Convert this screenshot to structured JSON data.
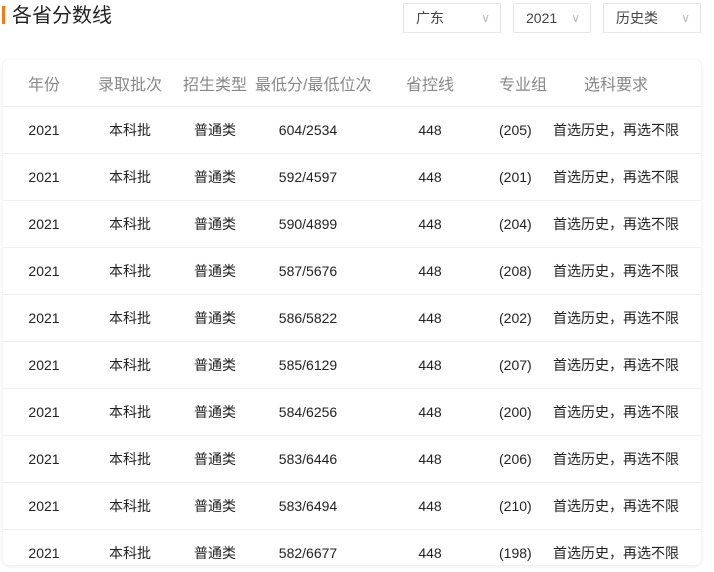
{
  "title": "各省分数线",
  "filters": {
    "province": "广东",
    "year": "2021",
    "category": "历史类"
  },
  "colors": {
    "accent": "#f27a1a"
  },
  "table": {
    "headers": [
      "年份",
      "录取批次",
      "招生类型",
      "最低分/最低位次",
      "省控线",
      "专业组",
      "选科要求"
    ],
    "rows": [
      [
        "2021",
        "本科批",
        "普通类",
        "604/2534",
        "448",
        "(205)",
        "首选历史，再选不限"
      ],
      [
        "2021",
        "本科批",
        "普通类",
        "592/4597",
        "448",
        "(201)",
        "首选历史，再选不限"
      ],
      [
        "2021",
        "本科批",
        "普通类",
        "590/4899",
        "448",
        "(204)",
        "首选历史，再选不限"
      ],
      [
        "2021",
        "本科批",
        "普通类",
        "587/5676",
        "448",
        "(208)",
        "首选历史，再选不限"
      ],
      [
        "2021",
        "本科批",
        "普通类",
        "586/5822",
        "448",
        "(202)",
        "首选历史，再选不限"
      ],
      [
        "2021",
        "本科批",
        "普通类",
        "585/6129",
        "448",
        "(207)",
        "首选历史，再选不限"
      ],
      [
        "2021",
        "本科批",
        "普通类",
        "584/6256",
        "448",
        "(200)",
        "首选历史，再选不限"
      ],
      [
        "2021",
        "本科批",
        "普通类",
        "583/6446",
        "448",
        "(206)",
        "首选历史，再选不限"
      ],
      [
        "2021",
        "本科批",
        "普通类",
        "583/6494",
        "448",
        "(210)",
        "首选历史，再选不限"
      ],
      [
        "2021",
        "本科批",
        "普通类",
        "582/6677",
        "448",
        "(198)",
        "首选历史，再选不限"
      ]
    ]
  }
}
